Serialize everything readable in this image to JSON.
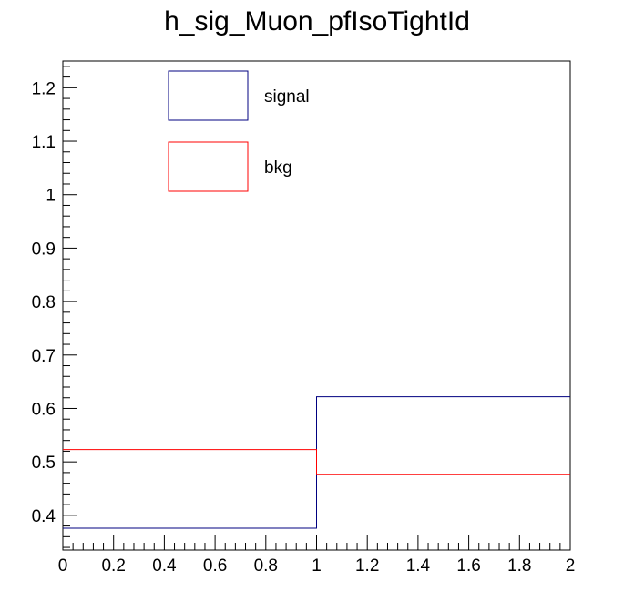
{
  "chart_data": {
    "type": "histogram",
    "title": "h_sig_Muon_pfIsoTightId",
    "xlabel": "",
    "ylabel": "",
    "xlim": [
      0,
      2
    ],
    "ylim": [
      0.335,
      1.25
    ],
    "bin_edges": [
      0,
      1,
      2
    ],
    "x_ticks": [
      0,
      0.2,
      0.4,
      0.6,
      0.8,
      1,
      1.2,
      1.4,
      1.6,
      1.8,
      2
    ],
    "x_tick_labels": [
      "0",
      "0.2",
      "0.4",
      "0.6",
      "0.8",
      "1",
      "1.2",
      "1.4",
      "1.6",
      "1.8",
      "2"
    ],
    "y_ticks": [
      0.4,
      0.5,
      0.6,
      0.7,
      0.8,
      0.9,
      1,
      1.1,
      1.2
    ],
    "y_tick_labels": [
      "0.4",
      "0.5",
      "0.6",
      "0.7",
      "0.8",
      "0.9",
      "1",
      "1.1",
      "1.2"
    ],
    "series": [
      {
        "name": "signal",
        "color": "#000080",
        "values": [
          0.376,
          0.622
        ]
      },
      {
        "name": "bkg",
        "color": "#ff0000",
        "values": [
          0.523,
          0.476
        ]
      }
    ],
    "legend": {
      "placement": "top-left"
    },
    "grid": false
  }
}
